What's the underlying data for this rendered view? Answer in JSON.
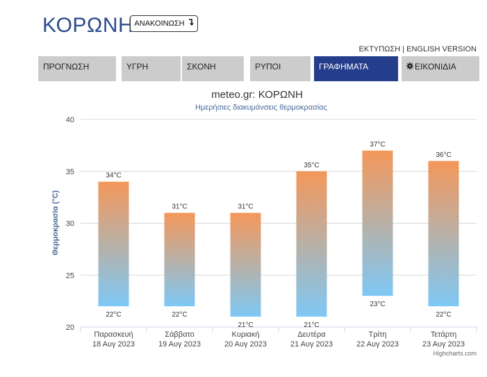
{
  "header": {
    "title": "ΚΟΡΩΝΗ",
    "announce_label": "ΑΝΑΚΟΙΝΩΣΗ",
    "announce_icon": "arrow-down-return-icon"
  },
  "toplinks": {
    "print": "ΕΚΤΥΠΩΣΗ",
    "separator": " | ",
    "english": "ENGLISH VERSION"
  },
  "tabs": [
    {
      "label": "ΠΡΟΓΝΩΣΗ",
      "active": false
    },
    {
      "label": "ΥΓΡΗ",
      "active": false
    },
    {
      "label": "ΣΚΟΝΗ",
      "active": false
    },
    {
      "label": "ΡΥΠΟΙ",
      "active": false
    },
    {
      "label": "ΓΡΑΦΗΜΑΤΑ",
      "active": true
    },
    {
      "label": "ΕΙΚΟΝΙΔΙΑ",
      "active": false,
      "icon": "gear-icon"
    }
  ],
  "colors": {
    "accent": "#253e8c",
    "title": "#2a4a8e",
    "bar_top": "#f4975a",
    "bar_bottom": "#7ec8f5",
    "tab_bg": "#cccccc"
  },
  "chart_data": {
    "type": "columnrange",
    "title": "meteo.gr: ΚΟΡΩΝΗ",
    "subtitle": "Ημερήσιες διακυμάνσεις θερμοκρασίας",
    "ylabel": "Θερμοκρασία (°C)",
    "ylim": [
      20,
      40
    ],
    "yticks": [
      "20",
      "25",
      "30",
      "35",
      "40"
    ],
    "grid": true,
    "categories": [
      {
        "day": "Παρασκευή",
        "date": "18 Αυγ 2023"
      },
      {
        "day": "Σάββατο",
        "date": "19 Αυγ 2023"
      },
      {
        "day": "Κυριακή",
        "date": "20 Αυγ 2023"
      },
      {
        "day": "Δευτέρα",
        "date": "21 Αυγ 2023"
      },
      {
        "day": "Τρίτη",
        "date": "22 Αυγ 2023"
      },
      {
        "day": "Τετάρτη",
        "date": "23 Αυγ 2023"
      }
    ],
    "low": [
      22,
      22,
      21,
      21,
      23,
      22
    ],
    "high": [
      34,
      31,
      31,
      35,
      37,
      36
    ],
    "low_labels": [
      "22°C",
      "22°C",
      "21°C",
      "21°C",
      "23°C",
      "22°C"
    ],
    "high_labels": [
      "34°C",
      "31°C",
      "31°C",
      "35°C",
      "37°C",
      "36°C"
    ]
  },
  "credit": "Highcharts.com"
}
